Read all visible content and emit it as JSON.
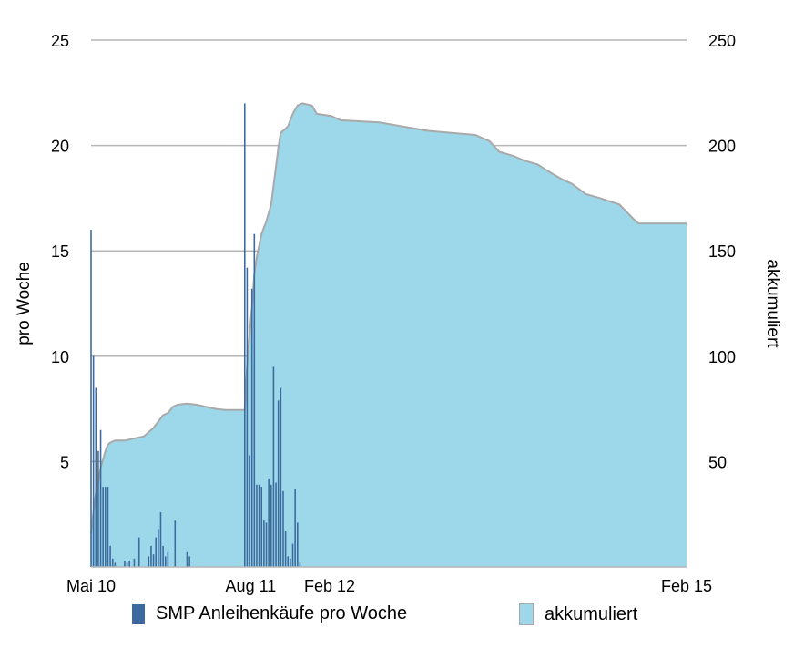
{
  "chart_data": {
    "type": "bar+area",
    "y_left": {
      "label": "pro Woche",
      "ylim": [
        0,
        25
      ],
      "ticks": [
        "5",
        "10",
        "15",
        "20",
        "25"
      ],
      "tick_values": [
        5,
        10,
        15,
        20,
        25
      ]
    },
    "y_right": {
      "label": "akkumuliert",
      "ylim": [
        0,
        250
      ],
      "ticks": [
        "50",
        "100",
        "150",
        "200",
        "250"
      ],
      "tick_values": [
        50,
        100,
        150,
        200,
        250
      ]
    },
    "x_ticks": [
      {
        "label": "Mai 10",
        "week": 0
      },
      {
        "label": "Aug 11",
        "week": 65
      },
      {
        "label": "Feb 12",
        "week": 91
      },
      {
        "label": "Feb 15",
        "week": 248
      }
    ],
    "x_range": [
      0,
      248
    ],
    "grid": true,
    "legend_position": "bottom",
    "series": [
      {
        "name": "SMP Anleihenkäufe pro Woche",
        "type": "bar",
        "axis": "left",
        "color": "#3c6a9e",
        "points": [
          [
            0,
            16.0
          ],
          [
            1,
            10.0
          ],
          [
            2,
            8.5
          ],
          [
            3,
            5.5
          ],
          [
            4,
            6.5
          ],
          [
            5,
            3.8
          ],
          [
            6,
            3.8
          ],
          [
            7,
            3.8
          ],
          [
            8,
            1.0
          ],
          [
            9,
            0.4
          ],
          [
            10,
            0.2
          ],
          [
            14,
            0.3
          ],
          [
            15,
            0.2
          ],
          [
            16,
            0.3
          ],
          [
            18,
            0.4
          ],
          [
            20,
            1.4
          ],
          [
            24,
            0.5
          ],
          [
            25,
            1.0
          ],
          [
            26,
            0.6
          ],
          [
            27,
            1.4
          ],
          [
            28,
            1.8
          ],
          [
            29,
            2.6
          ],
          [
            30,
            1.0
          ],
          [
            31,
            0.5
          ],
          [
            32,
            0.7
          ],
          [
            35,
            2.2
          ],
          [
            40,
            0.7
          ],
          [
            41,
            0.5
          ],
          [
            64,
            22.0
          ],
          [
            65,
            14.2
          ],
          [
            66,
            5.3
          ],
          [
            67,
            13.2
          ],
          [
            68,
            15.8
          ],
          [
            69,
            3.9
          ],
          [
            70,
            3.9
          ],
          [
            71,
            3.8
          ],
          [
            72,
            2.2
          ],
          [
            73,
            2.1
          ],
          [
            74,
            4.2
          ],
          [
            75,
            3.9
          ],
          [
            76,
            9.5
          ],
          [
            77,
            4.0
          ],
          [
            78,
            7.9
          ],
          [
            79,
            8.5
          ],
          [
            80,
            3.6
          ],
          [
            81,
            1.7
          ],
          [
            82,
            0.5
          ],
          [
            83,
            0.4
          ],
          [
            84,
            1.1
          ],
          [
            85,
            3.7
          ],
          [
            86,
            2.1
          ],
          [
            87,
            0.2
          ]
        ]
      },
      {
        "name": "akkumuliert",
        "type": "area",
        "axis": "right",
        "color": "#9dd8ea",
        "points": [
          [
            0,
            16
          ],
          [
            1,
            26
          ],
          [
            2,
            35
          ],
          [
            3,
            40
          ],
          [
            4,
            47
          ],
          [
            5,
            51
          ],
          [
            6,
            55
          ],
          [
            7,
            58
          ],
          [
            8,
            59
          ],
          [
            10,
            60
          ],
          [
            14,
            60
          ],
          [
            18,
            61
          ],
          [
            22,
            62
          ],
          [
            26,
            66
          ],
          [
            28,
            69
          ],
          [
            30,
            72
          ],
          [
            32,
            73
          ],
          [
            34,
            76
          ],
          [
            36,
            77
          ],
          [
            40,
            77.5
          ],
          [
            44,
            77
          ],
          [
            48,
            76
          ],
          [
            52,
            75
          ],
          [
            56,
            74.5
          ],
          [
            64,
            74.5
          ],
          [
            65,
            96
          ],
          [
            66,
            110
          ],
          [
            67,
            123
          ],
          [
            68,
            139
          ],
          [
            69,
            147
          ],
          [
            71,
            158
          ],
          [
            73,
            164
          ],
          [
            75,
            172
          ],
          [
            76,
            181
          ],
          [
            77,
            190
          ],
          [
            78,
            199
          ],
          [
            79,
            206
          ],
          [
            80,
            207
          ],
          [
            82,
            209
          ],
          [
            84,
            215
          ],
          [
            86,
            219
          ],
          [
            88,
            220
          ],
          [
            92,
            219
          ],
          [
            94,
            215
          ],
          [
            100,
            214
          ],
          [
            104,
            212
          ],
          [
            120,
            211
          ],
          [
            140,
            207
          ],
          [
            150,
            206
          ],
          [
            160,
            205
          ],
          [
            166,
            202
          ],
          [
            170,
            197
          ],
          [
            176,
            195
          ],
          [
            180,
            193
          ],
          [
            186,
            191
          ],
          [
            190,
            188
          ],
          [
            196,
            184
          ],
          [
            200,
            182
          ],
          [
            206,
            177
          ],
          [
            212,
            175
          ],
          [
            220,
            172
          ],
          [
            226,
            165
          ],
          [
            228,
            163
          ],
          [
            248,
            163
          ]
        ]
      }
    ]
  }
}
